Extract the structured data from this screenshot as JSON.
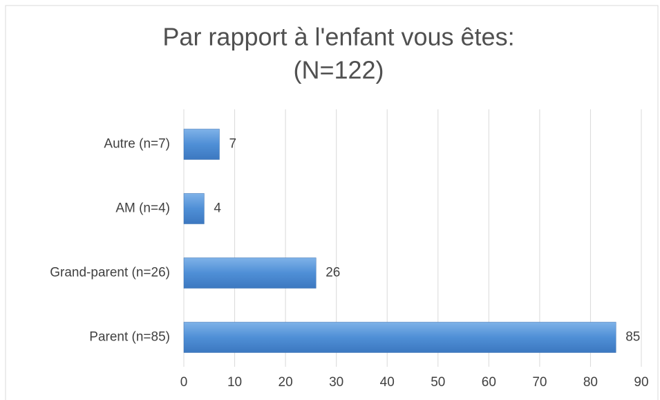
{
  "chart_data": {
    "type": "hbar",
    "title_lines": [
      "Par rapport à l'enfant vous êtes:",
      "(N=122)"
    ],
    "categories": [
      "Autre (n=7)",
      "AM (n=4)",
      "Grand-parent (n=26)",
      "Parent (n=85)"
    ],
    "values": [
      7,
      4,
      26,
      85
    ],
    "color": "#4f8fd6",
    "xlim": [
      0,
      90
    ],
    "xticks": [
      0,
      10,
      20,
      30,
      40,
      50,
      60,
      70,
      80,
      90
    ],
    "grid": true
  }
}
